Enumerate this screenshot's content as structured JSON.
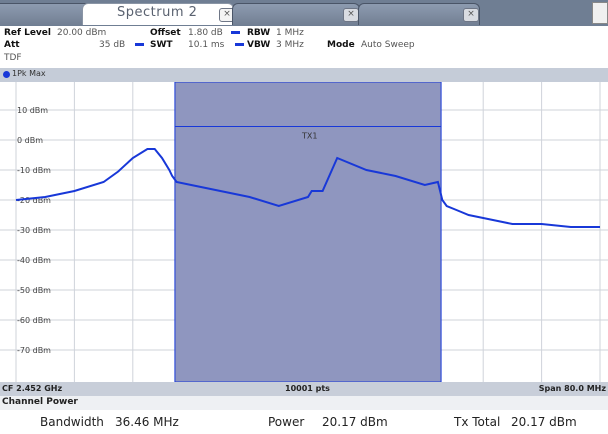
{
  "tabs": [
    {
      "label": "",
      "active": false
    },
    {
      "label": "Spectrum 2",
      "active": true
    },
    {
      "label": "",
      "active": false
    },
    {
      "label": "",
      "active": false
    }
  ],
  "settings": {
    "ref_level_label": "Ref Level",
    "ref_level_value": "20.00 dBm",
    "offset_label": "Offset",
    "offset_value": "1.80 dB",
    "rbw_label": "RBW",
    "rbw_value": "1 MHz",
    "att_label": "Att",
    "att_value": "35 dB",
    "swt_label": "SWT",
    "swt_value": "10.1 ms",
    "vbw_label": "VBW",
    "vbw_value": "3 MHz",
    "mode_label": "Mode",
    "mode_value": "Auto Sweep",
    "tdf_label": "TDF"
  },
  "trace": {
    "label": "1Pk Max",
    "color": "#1838d8"
  },
  "plot": {
    "y_ticks": [
      "10 dBm",
      "0 dBm",
      "-10 dBm",
      "-20 dBm",
      "-30 dBm",
      "-40 dBm",
      "-50 dBm",
      "-60 dBm",
      "-70 dBm"
    ],
    "channel_label": "TX1",
    "channel_color": "#8f96bf",
    "trace_color": "#1838d8"
  },
  "chart_data": {
    "type": "line",
    "title": "",
    "xlabel": "",
    "ylabel": "",
    "x_unit": "GHz",
    "xlim": [
      2.412,
      2.492
    ],
    "ylim": [
      -80,
      20
    ],
    "grid": true,
    "y_ticks": [
      10,
      0,
      -10,
      -20,
      -30,
      -40,
      -50,
      -60,
      -70
    ],
    "channel": {
      "name": "TX1",
      "start": 2.43377,
      "stop": 2.47023,
      "level": 4.5
    },
    "series": [
      {
        "x": [
          2.412,
          2.416,
          2.42,
          2.424,
          2.426,
          2.428,
          2.43,
          2.431,
          2.432,
          2.433,
          2.4334,
          2.434,
          2.436,
          2.44,
          2.444,
          2.448,
          2.452,
          2.4525,
          2.454,
          2.456,
          2.46,
          2.464,
          2.468,
          2.4698,
          2.4704,
          2.471,
          2.472,
          2.473,
          2.474,
          2.476,
          2.478,
          2.48,
          2.484,
          2.488,
          2.492
        ],
        "values": [
          -20,
          -19,
          -17,
          -14,
          -10.5,
          -6,
          -3,
          -3,
          -6,
          -10,
          -12,
          -14,
          -15,
          -17,
          -19,
          -22,
          -19,
          -17,
          -17,
          -6,
          -10,
          -12,
          -15,
          -14,
          -20,
          -22,
          -23,
          -24,
          -25,
          -26,
          -27,
          -28,
          -28,
          -29,
          -29
        ]
      }
    ]
  },
  "footer": {
    "center_freq": "CF 2.452 GHz",
    "points": "10001 pts",
    "span": "Span 80.0 MHz"
  },
  "channel_power": {
    "title": "Channel Power",
    "bandwidth_label": "Bandwidth",
    "bandwidth_value": "36.46 MHz",
    "power_label": "Power",
    "power_value": "20.17 dBm",
    "tx_total_label": "Tx Total",
    "tx_total_value": "20.17 dBm"
  }
}
